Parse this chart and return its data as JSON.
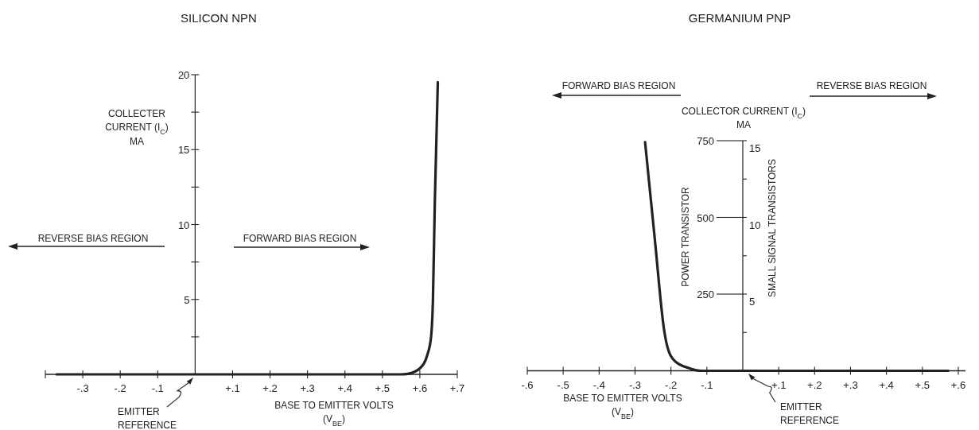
{
  "chart_data": [
    {
      "type": "line",
      "title": "SILICON NPN",
      "xlabel": "BASE TO EMITTER VOLTS\n(V$_{BE}$)",
      "ylabel": "COLLECTER\nCURRENT (I$_{C}$)\nMA",
      "annotations": [
        "REVERSE BIAS REGION",
        "FORWARD BIAS REGION",
        "EMITTER\nREFERENCE"
      ],
      "xlim": [
        -0.4,
        0.7
      ],
      "xticks": [
        {
          "value": -0.4,
          "label": null
        },
        {
          "value": -0.3,
          "label": "-.3"
        },
        {
          "value": -0.2,
          "label": "-.2"
        },
        {
          "value": -0.1,
          "label": "-.1"
        },
        {
          "value": 0.1,
          "label": "+.1"
        },
        {
          "value": 0.2,
          "label": "+.2"
        },
        {
          "value": 0.3,
          "label": "+.3"
        },
        {
          "value": 0.4,
          "label": "+.4"
        },
        {
          "value": 0.5,
          "label": "+.5"
        },
        {
          "value": 0.6,
          "label": "+.6"
        },
        {
          "value": 0.7,
          "label": "+.7"
        }
      ],
      "ylim": [
        0,
        20
      ],
      "yticks": [
        {
          "value": 2.5,
          "label": null
        },
        5,
        {
          "value": 7.5,
          "label": null
        },
        10,
        {
          "value": 12.5,
          "label": null
        },
        15,
        {
          "value": 17.5,
          "label": null
        },
        20
      ],
      "series": [
        {
          "color": "#222222",
          "x": [
            -0.37,
            0.55,
            0.57,
            0.6,
            0.62,
            0.63,
            0.635,
            0.64,
            0.648
          ],
          "values": [
            0,
            0,
            0.05,
            0.4,
            1.3,
            2.5,
            5,
            11.5,
            19.5
          ]
        }
      ]
    },
    {
      "type": "line",
      "title": "GERMANIUM PNP",
      "xlabel": "BASE TO EMITTER VOLTS\n(V$_{BE}$)",
      "ylabel": "POWER TRANSISTOR",
      "y2label": "SMALL SIGNAL TRANSISTORS",
      "annotations": [
        "FORWARD BIAS REGION",
        "REVERSE BIAS REGION",
        "COLLECTOR CURRENT (I$_{C}$)\nMA",
        "EMITTER\nREFERENCE"
      ],
      "xlim": [
        -0.6,
        0.62
      ],
      "xticks": [
        {
          "value": -0.6,
          "label": "-.6"
        },
        {
          "value": -0.5,
          "label": "-.5"
        },
        {
          "value": -0.4,
          "label": "-.4"
        },
        {
          "value": -0.3,
          "label": "-.3"
        },
        {
          "value": -0.2,
          "label": "-.2"
        },
        {
          "value": -0.1,
          "label": "-.1"
        },
        {
          "value": 0.1,
          "label": "+.1"
        },
        {
          "value": 0.2,
          "label": "+.2"
        },
        {
          "value": 0.3,
          "label": "+.3"
        },
        {
          "value": 0.4,
          "label": "+.4"
        },
        {
          "value": 0.5,
          "label": "+.5"
        },
        {
          "value": 0.6,
          "label": "+.6"
        }
      ],
      "ylim": [
        0,
        750
      ],
      "yticks": [
        250,
        500,
        750
      ],
      "y2lim": [
        0,
        15
      ],
      "y2ticks": [
        {
          "value": 2.5,
          "label": null
        },
        5,
        {
          "value": 7.5,
          "label": null
        },
        10,
        {
          "value": 12.5,
          "label": null
        },
        15
      ],
      "series": [
        {
          "color": "#222222",
          "x": [
            -0.272,
            -0.245,
            -0.219,
            -0.211,
            -0.19,
            -0.148,
            -0.115,
            0.572
          ],
          "values": [
            745,
            430,
            133,
            83,
            33,
            8,
            0,
            0
          ]
        }
      ]
    }
  ]
}
